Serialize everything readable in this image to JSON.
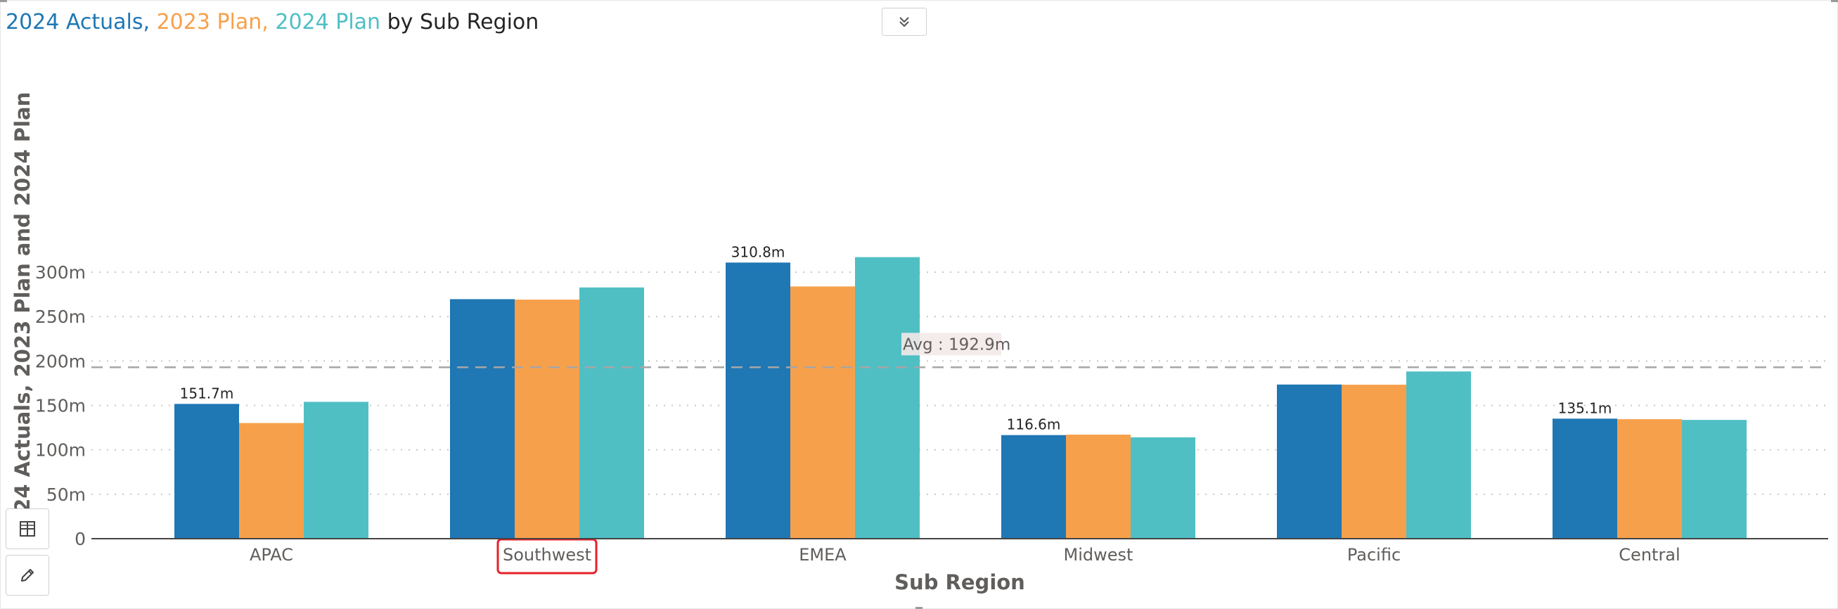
{
  "title": {
    "parts": [
      {
        "text": "2024 Actuals, ",
        "color": "#1f77b4"
      },
      {
        "text": "2023 Plan, ",
        "color": "#f7a04b"
      },
      {
        "text": "2024 Plan",
        "color": "#4fbfc4"
      },
      {
        "text": " by Sub Region",
        "color": "#252423"
      }
    ]
  },
  "toolbar": {
    "collapse_icon": "chevron-double-down-icon",
    "table_icon": "table-view-icon",
    "edit_icon": "pencil-icon"
  },
  "colors": {
    "actuals_2024": "#1f77b4",
    "plan_2023": "#f7a04b",
    "plan_2024": "#4fbfc4",
    "highlight": "#e8202a",
    "avg_line": "#a6a6a6"
  },
  "chart_data": {
    "type": "bar",
    "title": "2024 Actuals, 2023 Plan, 2024 Plan by Sub Region",
    "xlabel": "Sub Region",
    "ylabel": "2024 Actuals, 2023 Plan and 2024 Plan",
    "categories": [
      "APAC",
      "Southwest",
      "EMEA",
      "Midwest",
      "Pacific",
      "Central"
    ],
    "highlighted_category": "Southwest",
    "series": [
      {
        "name": "2024 Actuals",
        "color": "#1f77b4",
        "values": [
          151.7,
          269.6,
          310.8,
          116.6,
          173.5,
          135.1
        ]
      },
      {
        "name": "2023 Plan",
        "color": "#f7a04b",
        "values": [
          130.2,
          269.1,
          283.9,
          117.1,
          173.3,
          134.5
        ]
      },
      {
        "name": "2024 Plan",
        "color": "#4fbfc4",
        "values": [
          154.0,
          282.8,
          316.9,
          114.1,
          188.2,
          133.7
        ]
      }
    ],
    "data_labels": [
      {
        "category": "APAC",
        "text": "151.7m"
      },
      {
        "category": "EMEA",
        "text": "310.8m"
      },
      {
        "category": "Midwest",
        "text": "116.6m"
      },
      {
        "category": "Central",
        "text": "135.1m"
      }
    ],
    "yticks": [
      {
        "value": 0,
        "label": "0"
      },
      {
        "value": 50,
        "label": "50m"
      },
      {
        "value": 100,
        "label": "100m"
      },
      {
        "value": 150,
        "label": "150m"
      },
      {
        "value": 200,
        "label": "200m"
      },
      {
        "value": 250,
        "label": "250m"
      },
      {
        "value": 300,
        "label": "300m"
      }
    ],
    "ylim": [
      0,
      330
    ],
    "grid": true,
    "reference_line": {
      "label": "Avg : 192.9m",
      "value": 192.9
    }
  }
}
